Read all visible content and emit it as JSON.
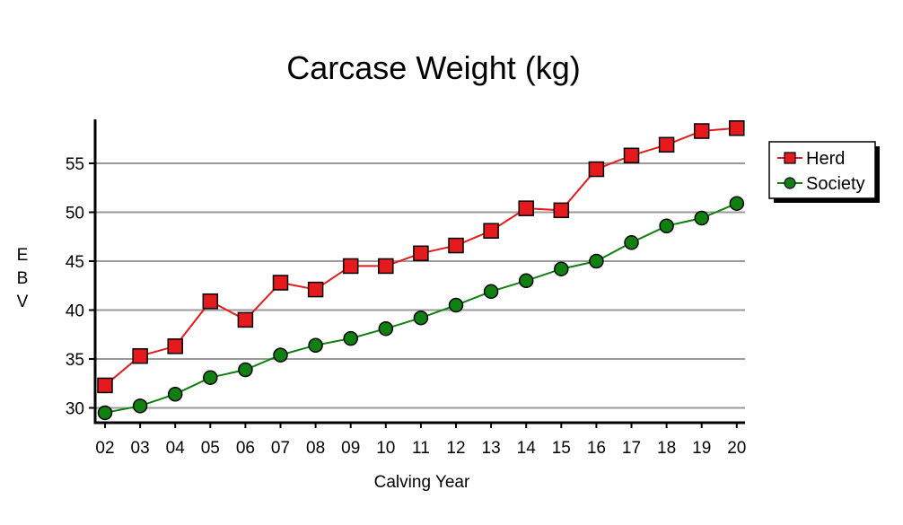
{
  "chart_data": {
    "type": "line",
    "title": "Carcase Weight (kg)",
    "xlabel": "Calving Year",
    "ylabel": "EBV",
    "categories": [
      "02",
      "03",
      "04",
      "05",
      "06",
      "07",
      "08",
      "09",
      "10",
      "11",
      "12",
      "13",
      "14",
      "15",
      "16",
      "17",
      "18",
      "19",
      "20"
    ],
    "ylim": [
      28.5,
      60
    ],
    "yticks": [
      30,
      35,
      40,
      45,
      50,
      55
    ],
    "grid": true,
    "legend_position": "right",
    "series": [
      {
        "name": "Herd",
        "color": "#e41a1c",
        "marker": "square",
        "values": [
          32.3,
          35.3,
          36.3,
          40.9,
          39.0,
          42.8,
          42.1,
          44.5,
          44.5,
          45.8,
          46.6,
          48.1,
          50.4,
          50.2,
          54.4,
          55.8,
          56.9,
          58.3,
          58.6
        ]
      },
      {
        "name": "Society",
        "color": "#108010",
        "marker": "circle",
        "values": [
          29.5,
          30.2,
          31.4,
          33.1,
          33.9,
          35.4,
          36.4,
          37.1,
          38.1,
          39.2,
          40.5,
          41.9,
          43.0,
          44.2,
          45.0,
          46.9,
          48.6,
          49.4,
          50.9
        ]
      }
    ]
  }
}
